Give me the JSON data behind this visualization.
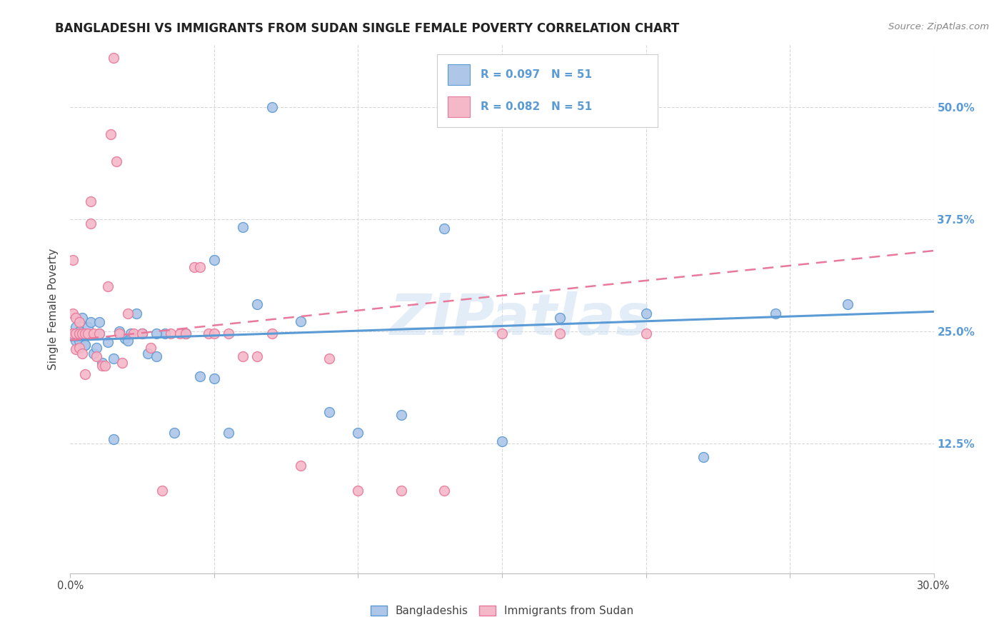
{
  "title": "BANGLADESHI VS IMMIGRANTS FROM SUDAN SINGLE FEMALE POVERTY CORRELATION CHART",
  "source": "Source: ZipAtlas.com",
  "ylabel": "Single Female Poverty",
  "ytick_vals": [
    0.125,
    0.25,
    0.375,
    0.5
  ],
  "ytick_labels": [
    "12.5%",
    "25.0%",
    "37.5%",
    "50.0%"
  ],
  "xlim": [
    0.0,
    0.3
  ],
  "ylim": [
    -0.02,
    0.57
  ],
  "legend_entries": [
    {
      "label": "R = 0.097   N = 51",
      "color_fill": "#a8c4e0",
      "color_edge": "#6aaed6"
    },
    {
      "label": "R = 0.082   N = 51",
      "color_fill": "#f4b8c8",
      "color_edge": "#f48fb1"
    }
  ],
  "bottom_legend": [
    {
      "label": "Bangladeshis",
      "color_fill": "#a8c4e0",
      "color_edge": "#6aaed6"
    },
    {
      "label": "Immigrants from Sudan",
      "color_fill": "#f4b8c8",
      "color_edge": "#f48fb1"
    }
  ],
  "blue_scatter_x": [
    0.001,
    0.002,
    0.002,
    0.003,
    0.003,
    0.004,
    0.005,
    0.005,
    0.006,
    0.007,
    0.008,
    0.009,
    0.01,
    0.011,
    0.013,
    0.015,
    0.017,
    0.019,
    0.021,
    0.023,
    0.025,
    0.027,
    0.03,
    0.033,
    0.036,
    0.04,
    0.045,
    0.05,
    0.055,
    0.06,
    0.065,
    0.07,
    0.08,
    0.09,
    0.1,
    0.115,
    0.13,
    0.15,
    0.17,
    0.2,
    0.22,
    0.245,
    0.27,
    0.05,
    0.04,
    0.03,
    0.025,
    0.02,
    0.015,
    0.01,
    0.005
  ],
  "blue_scatter_y": [
    0.245,
    0.255,
    0.24,
    0.24,
    0.25,
    0.265,
    0.235,
    0.248,
    0.255,
    0.26,
    0.225,
    0.232,
    0.248,
    0.215,
    0.238,
    0.13,
    0.25,
    0.242,
    0.248,
    0.27,
    0.248,
    0.225,
    0.222,
    0.248,
    0.137,
    0.248,
    0.2,
    0.197,
    0.137,
    0.366,
    0.28,
    0.5,
    0.261,
    0.16,
    0.137,
    0.157,
    0.365,
    0.127,
    0.265,
    0.27,
    0.11,
    0.27,
    0.28,
    0.33,
    0.248,
    0.248,
    0.248,
    0.24,
    0.22,
    0.26,
    0.235
  ],
  "pink_scatter_x": [
    0.001,
    0.001,
    0.001,
    0.002,
    0.002,
    0.002,
    0.003,
    0.003,
    0.003,
    0.004,
    0.004,
    0.005,
    0.005,
    0.006,
    0.007,
    0.007,
    0.008,
    0.009,
    0.01,
    0.011,
    0.012,
    0.013,
    0.014,
    0.015,
    0.016,
    0.017,
    0.018,
    0.02,
    0.022,
    0.025,
    0.028,
    0.032,
    0.035,
    0.038,
    0.04,
    0.043,
    0.045,
    0.048,
    0.05,
    0.055,
    0.06,
    0.065,
    0.07,
    0.08,
    0.09,
    0.1,
    0.115,
    0.13,
    0.15,
    0.17,
    0.2
  ],
  "pink_scatter_y": [
    0.248,
    0.27,
    0.33,
    0.248,
    0.265,
    0.23,
    0.248,
    0.232,
    0.26,
    0.248,
    0.225,
    0.202,
    0.248,
    0.248,
    0.37,
    0.395,
    0.248,
    0.222,
    0.248,
    0.212,
    0.212,
    0.3,
    0.47,
    0.555,
    0.44,
    0.248,
    0.215,
    0.27,
    0.248,
    0.248,
    0.232,
    0.072,
    0.248,
    0.248,
    0.248,
    0.322,
    0.322,
    0.248,
    0.248,
    0.248,
    0.222,
    0.222,
    0.248,
    0.1,
    0.22,
    0.072,
    0.072,
    0.072,
    0.248,
    0.248,
    0.248
  ],
  "blue_line_x": [
    0.0,
    0.3
  ],
  "blue_line_y": [
    0.24,
    0.272
  ],
  "pink_line_x": [
    0.0,
    0.3
  ],
  "pink_line_y": [
    0.24,
    0.34
  ],
  "blue_color": "#5b9bd5",
  "blue_fill": "#aec6e8",
  "pink_color": "#e8799a",
  "pink_fill": "#f4b8c8",
  "watermark": "ZIPatlas",
  "background_color": "#ffffff",
  "grid_color": "#d8d8d8",
  "text_color_blue": "#5b9bd5",
  "text_color_dark": "#444444"
}
